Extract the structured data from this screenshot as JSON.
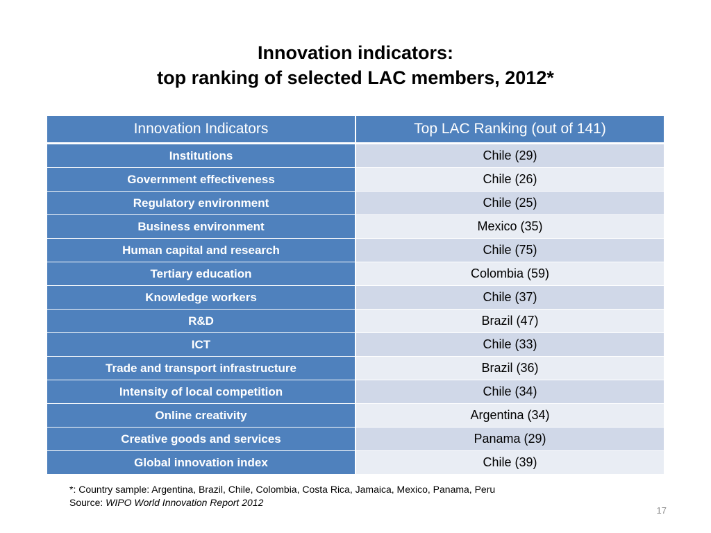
{
  "title": {
    "line1": "Innovation indicators:",
    "line2": "top ranking of selected LAC members, 2012*"
  },
  "table": {
    "headers": [
      "Innovation Indicators",
      "Top LAC Ranking (out of 141)"
    ],
    "rows": [
      {
        "indicator": "Institutions",
        "ranking": "Chile (29)"
      },
      {
        "indicator": "Government effectiveness",
        "ranking": "Chile (26)"
      },
      {
        "indicator": "Regulatory environment",
        "ranking": "Chile (25)"
      },
      {
        "indicator": "Business environment",
        "ranking": "Mexico (35)"
      },
      {
        "indicator": "Human capital and research",
        "ranking": "Chile (75)"
      },
      {
        "indicator": "Tertiary education",
        "ranking": "Colombia (59)"
      },
      {
        "indicator": "Knowledge workers",
        "ranking": "Chile (37)"
      },
      {
        "indicator": "R&D",
        "ranking": "Brazil (47)"
      },
      {
        "indicator": "ICT",
        "ranking": "Chile (33)"
      },
      {
        "indicator": "Trade and transport infrastructure",
        "ranking": "Brazil (36)"
      },
      {
        "indicator": "Intensity of local competition",
        "ranking": "Chile (34)"
      },
      {
        "indicator": "Online creativity",
        "ranking": "Argentina (34)"
      },
      {
        "indicator": "Creative goods and services",
        "ranking": "Panama (29)"
      },
      {
        "indicator": "Global innovation index",
        "ranking": "Chile (39)"
      }
    ]
  },
  "footnote": {
    "sample": "*: Country sample: Argentina, Brazil, Chile, Colombia, Costa Rica, Jamaica, Mexico, Panama, Peru",
    "source_label": "Source: ",
    "source_text": "WIPO World Innovation Report 2012"
  },
  "page_number": "17",
  "colors": {
    "header_blue": "#4f81bd",
    "row_band_dark": "#d0d8e8",
    "row_band_light": "#e9edf4"
  }
}
